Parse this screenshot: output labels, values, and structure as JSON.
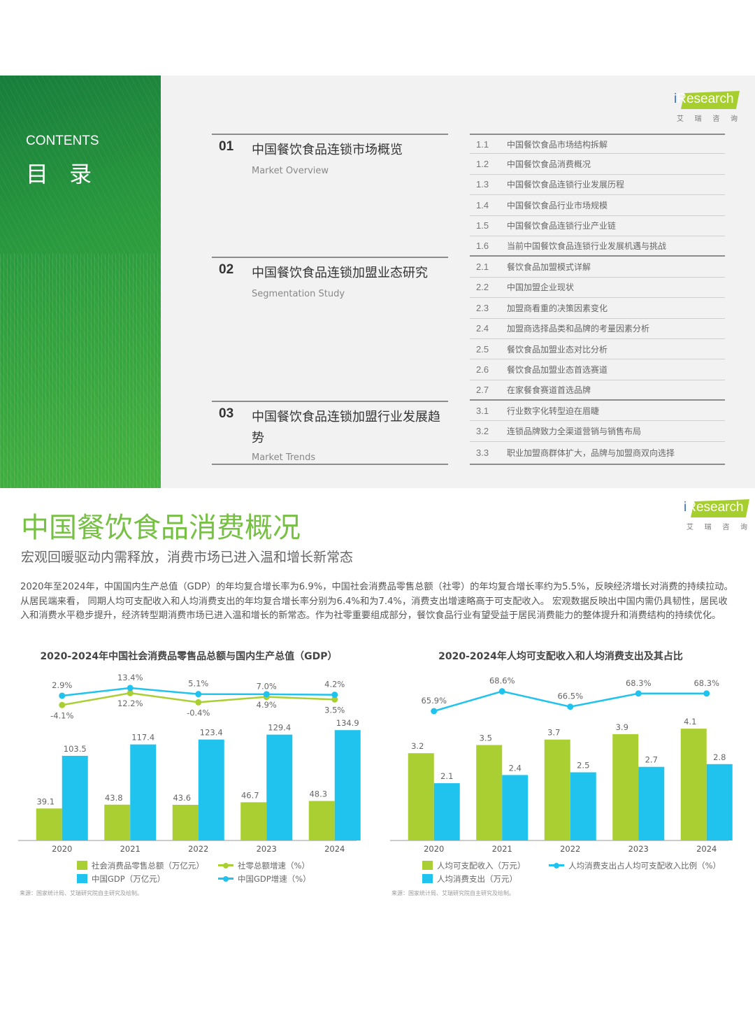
{
  "toc": {
    "contents_en": "CONTENTS",
    "contents_zh": "目 录",
    "logo": {
      "brand_i": "i",
      "brand_rest": "Research",
      "sub": [
        "艾",
        "瑞",
        "咨",
        "询"
      ]
    },
    "sections": [
      {
        "num": "01",
        "title": "中国餐饮食品连锁市场概览",
        "subtitle": "Market Overview",
        "items": [
          {
            "num": "1.1",
            "label": "中国餐饮食品市场结构拆解"
          },
          {
            "num": "1.2",
            "label": "中国餐饮食品消费概况"
          },
          {
            "num": "1.3",
            "label": "中国餐饮食品连锁行业发展历程"
          },
          {
            "num": "1.4",
            "label": "中国餐饮食品行业市场规模"
          },
          {
            "num": "1.5",
            "label": "中国餐饮食品连锁行业产业链"
          },
          {
            "num": "1.6",
            "label": "当前中国餐饮食品连锁行业发展机遇与挑战"
          }
        ]
      },
      {
        "num": "02",
        "title": "中国餐饮食品连锁加盟业态研究",
        "subtitle": "Segmentation Study",
        "items": [
          {
            "num": "2.1",
            "label": "餐饮食品加盟模式详解"
          },
          {
            "num": "2.2",
            "label": "中国加盟企业现状"
          },
          {
            "num": "2.3",
            "label": "加盟商看重的决策因素变化"
          },
          {
            "num": "2.4",
            "label": "加盟商选择品类和品牌的考量因素分析"
          },
          {
            "num": "2.5",
            "label": "餐饮食品加盟业态对比分析"
          },
          {
            "num": "2.6",
            "label": "餐饮食品加盟业态首选赛道"
          },
          {
            "num": "2.7",
            "label": "在家餐食赛道首选品牌"
          }
        ]
      },
      {
        "num": "03",
        "title": "中国餐饮食品连锁加盟行业发展趋势",
        "subtitle": "Market Trends",
        "items": [
          {
            "num": "3.1",
            "label": "行业数字化转型迫在眉睫"
          },
          {
            "num": "3.2",
            "label": "连锁品牌致力全渠道营销与销售布局"
          },
          {
            "num": "3.3",
            "label": "职业加盟商群体扩大，品牌与加盟商双向选择"
          }
        ]
      }
    ]
  },
  "page": {
    "title": "中国餐饮食品消费概况",
    "subtitle": "宏观回暖驱动内需释放，消费市场已进入温和增长新常态",
    "paragraph": "2020年至2024年，中国国内生产总值（GDP）的年均复合增长率为6.9%，中国社会消费品零售总额（社零）的年均复合增长率约为5.5%，反映经济增长对消费的持续拉动。从居民端来看， 同期人均可支配收入和人均消费支出的年均复合增长率分别为6.4%和为7.4%，消费支出增速略高于可支配收入。 宏观数据反映出中国内需仍具韧性，居民收入和消费水平稳步提升，经济转型期消费市场已进入温和增长的新常态。作为社零重要组成部分，餐饮食品行业有望受益于居民消费能力的整体提升和消费结构的持续优化。",
    "logo": {
      "brand_i": "i",
      "brand_rest": "Research",
      "sub": [
        "艾",
        "瑞",
        "咨",
        "询"
      ]
    }
  },
  "colors": {
    "green": "#aacf33",
    "blue": "#1fc3ee",
    "title_green": "#76c043"
  },
  "chart_data": [
    {
      "type": "bar",
      "title": "2020-2024年中国社会消费品零售品总额与国内生产总值（GDP）",
      "categories": [
        "2020",
        "2021",
        "2022",
        "2023",
        "2024"
      ],
      "series": [
        {
          "name": "社会消费品零售总额（万亿元）",
          "kind": "bar",
          "color": "#aacf33",
          "values": [
            39.1,
            43.8,
            43.6,
            46.7,
            48.3
          ]
        },
        {
          "name": "中国GDP（万亿元）",
          "kind": "bar",
          "color": "#1fc3ee",
          "values": [
            103.5,
            117.4,
            123.4,
            129.4,
            134.9
          ]
        },
        {
          "name": "社零总额增速（%）",
          "kind": "line",
          "color": "#aacf33",
          "values": [
            -4.1,
            12.2,
            -0.4,
            7.0,
            3.5
          ],
          "labels": [
            "-4.1%",
            "12.2%",
            "-0.4%",
            "7.0%",
            "3.5%"
          ]
        },
        {
          "name": "中国GDP增速（%）",
          "kind": "line",
          "color": "#1fc3ee",
          "values": [
            2.9,
            13.4,
            5.1,
            4.9,
            4.2
          ],
          "labels": [
            "2.9%",
            "13.4%",
            "5.1%",
            "4.9%",
            "4.2%"
          ]
        }
      ],
      "source": "来源：国家统计局、艾瑞研究院自主研究及绘制。",
      "grid": false,
      "legend_position": "bottom"
    },
    {
      "type": "bar",
      "title": "2020-2024年人均可支配收入和人均消费支出及其占比",
      "categories": [
        "2020",
        "2021",
        "2022",
        "2023",
        "2024"
      ],
      "series": [
        {
          "name": "人均可支配收入（万元）",
          "kind": "bar",
          "color": "#aacf33",
          "values": [
            3.2,
            3.5,
            3.7,
            3.9,
            4.1
          ]
        },
        {
          "name": "人均消费支出（万元）",
          "kind": "bar",
          "color": "#1fc3ee",
          "values": [
            2.1,
            2.4,
            2.5,
            2.7,
            2.8
          ]
        },
        {
          "name": "人均消费支出占人均可支配收入比例（%）",
          "kind": "line",
          "color": "#1fc3ee",
          "values": [
            65.9,
            68.6,
            66.5,
            68.3,
            68.3
          ],
          "labels": [
            "65.9%",
            "68.6%",
            "66.5%",
            "68.3%",
            "68.3%"
          ]
        }
      ],
      "source": "来源：国家统计局、艾瑞研究院自主研究及绘制。",
      "grid": false,
      "legend_position": "bottom"
    }
  ]
}
